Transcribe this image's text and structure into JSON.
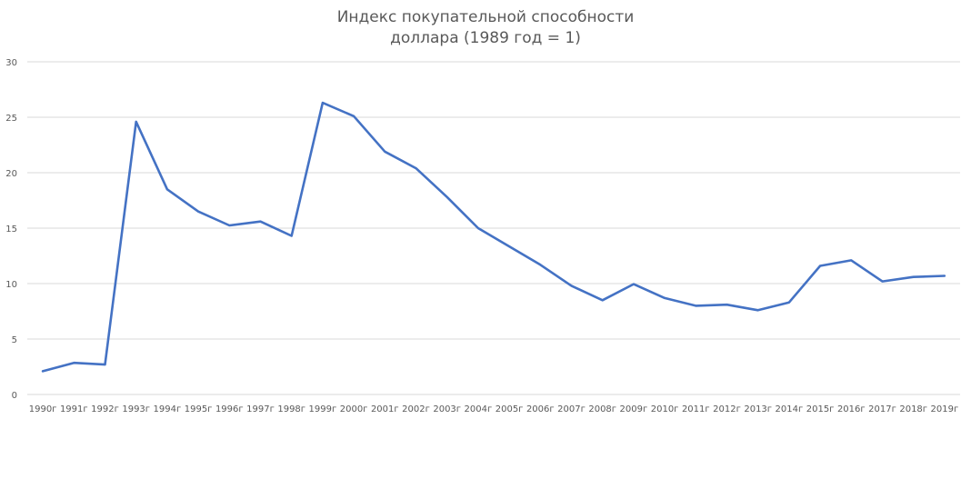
{
  "chart_data": {
    "type": "line",
    "title": "Индекс покупательной способности доллара (1989 год = 1)",
    "title_lines": [
      "Индекс покупательной способности",
      "доллара (1989 год = 1)"
    ],
    "xlabel": "",
    "ylabel": "",
    "ylim": [
      0,
      30
    ],
    "yticks": [
      0,
      5,
      10,
      15,
      20,
      25,
      30
    ],
    "grid": true,
    "legend": "none",
    "categories": [
      "1990г",
      "1991г",
      "1992г",
      "1993г",
      "1994г",
      "1995г",
      "1996г",
      "1997г",
      "1998г",
      "1999г",
      "2000г",
      "2001г",
      "2002г",
      "2003г",
      "2004г",
      "2005г",
      "2006г",
      "2007г",
      "2008г",
      "2009г",
      "2010г",
      "2011г",
      "2012г",
      "2013г",
      "2014г",
      "2015г",
      "2016г",
      "2017г",
      "2018г",
      "2019г"
    ],
    "series": [
      {
        "name": "Индекс покупательной способности доллара",
        "color": "#4472C4",
        "values": [
          2.1,
          2.85,
          2.7,
          24.6,
          18.5,
          16.5,
          15.25,
          15.6,
          14.3,
          26.3,
          25.1,
          21.9,
          20.4,
          17.8,
          15.0,
          13.35,
          11.7,
          9.8,
          8.5,
          9.95,
          8.7,
          8.0,
          8.1,
          7.6,
          8.3,
          11.6,
          12.1,
          10.2,
          10.6,
          10.7
        ]
      }
    ]
  },
  "colors": {
    "line": "#4472C4",
    "grid": "#D9D9D9",
    "text": "#595959"
  }
}
